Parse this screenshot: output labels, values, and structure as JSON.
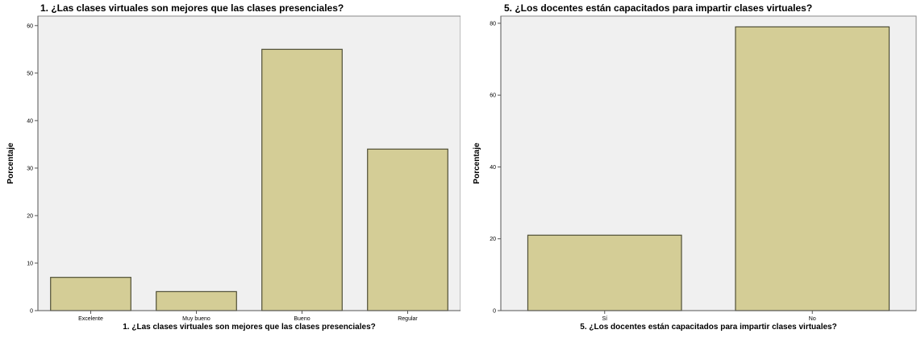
{
  "chart_data": [
    {
      "type": "bar",
      "title": "1. ¿Las clases virtuales son mejores que las clases presenciales?",
      "xlabel": "1. ¿Las clases virtuales son mejores que las clases presenciales?",
      "ylabel": "Porcentaje",
      "categories": [
        "Excelente",
        "Muy bueno",
        "Bueno",
        "Regular"
      ],
      "values": [
        7,
        4,
        55,
        34
      ],
      "ylim": [
        0,
        62
      ],
      "yticks": [
        0,
        10,
        20,
        30,
        40,
        50,
        60
      ],
      "grid": false,
      "legend": "none",
      "bar_color": "#d4cd96",
      "bar_edge": "#4f4f35",
      "plot_bg": "#f0f0f0"
    },
    {
      "type": "bar",
      "title": "5. ¿Los docentes están capacitados para impartir clases virtuales?",
      "xlabel": "5. ¿Los docentes están capacitados para impartir clases virtuales?",
      "ylabel": "Porcentaje",
      "categories": [
        "Sí",
        "No"
      ],
      "values": [
        21,
        79
      ],
      "ylim": [
        0,
        82
      ],
      "yticks": [
        0,
        20,
        40,
        60,
        80
      ],
      "grid": false,
      "legend": "none",
      "bar_color": "#d4cd96",
      "bar_edge": "#4f4f35",
      "plot_bg": "#f0f0f0"
    }
  ]
}
